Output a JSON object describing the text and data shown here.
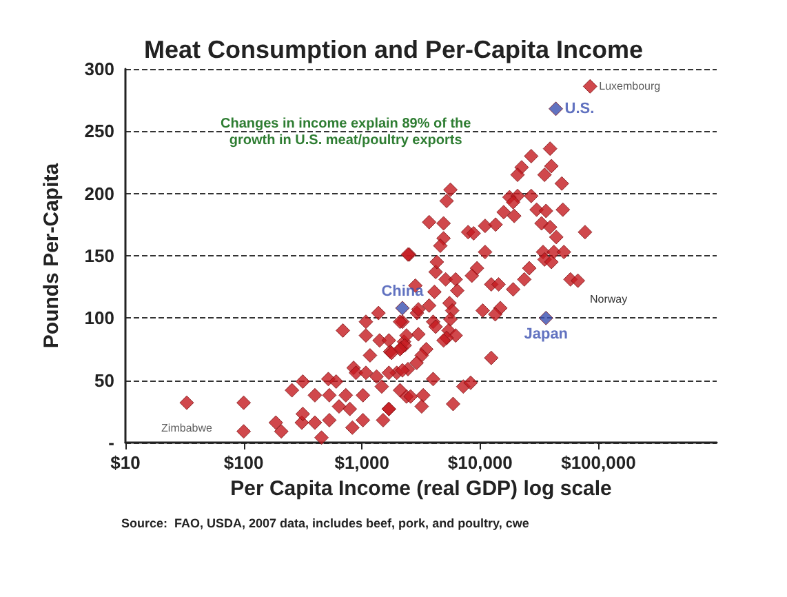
{
  "chart_data": {
    "type": "scatter",
    "title": "Meat Consumption and Per-Capita Income",
    "xlabel": "Per Capita Income (real GDP) log scale",
    "ylabel": "Pounds Per-Capita",
    "log": "x",
    "grid": "y",
    "marker": "diamond",
    "xlim": [
      10,
      1000000
    ],
    "xticks": [
      {
        "value": 10,
        "label": "$10"
      },
      {
        "value": 100,
        "label": "$100"
      },
      {
        "value": 1000,
        "label": "$1,000"
      },
      {
        "value": 10000,
        "label": "$10,000"
      },
      {
        "value": 100000,
        "label": "$100,000"
      }
    ],
    "ylim": [
      0,
      300
    ],
    "yticks": [
      {
        "value": 0,
        "label": "-"
      },
      50,
      100,
      150,
      200,
      250,
      300
    ],
    "series": [
      {
        "color": "#c41a1f",
        "x": [
          33,
          100,
          100,
          187,
          208,
          256,
          316,
          310,
          316,
          400,
          400,
          455,
          520,
          530,
          530,
          605,
          640,
          690,
          730,
          790,
          830,
          850,
          890,
          1020,
          1020,
          1080,
          1170,
          1080,
          1080,
          1380,
          1330,
          1410,
          1470,
          1510,
          1690,
          1730,
          1970,
          2150,
          2200,
          2510,
          2380,
          2270,
          2830,
          2920,
          85000,
          39000,
          27000,
          40000,
          22400,
          20700,
          35000,
          49000,
          5600,
          5200,
          17700,
          20700,
          27000,
          19000,
          15800,
          19400,
          30000,
          36000,
          50000,
          3700,
          4900,
          7900,
          8800,
          11000,
          13500,
          33000,
          39000,
          44000,
          77000,
          4900,
          4600,
          2450,
          11000,
          34000,
          42000,
          51000,
          35000,
          40000,
          4200,
          4300,
          9400,
          8500,
          26000,
          23600,
          58000,
          67000,
          5100,
          6200,
          6400,
          12400,
          14300,
          19000,
          4100,
          3000,
          3700,
          5500,
          5800,
          10500,
          14800,
          13400,
          2100,
          4000,
          5600,
          4200,
          5400,
          3000,
          6200,
          5200,
          4900,
          2380,
          1690,
          2300,
          2100,
          3500,
          1780,
          3200,
          12400,
          2900,
          2450,
          1690,
          2200,
          4000,
          2100,
          2580,
          3300,
          7200,
          8300,
          5900,
          3200,
          1690
        ],
        "values": [
          32,
          32,
          9,
          16,
          9,
          42,
          49,
          16,
          23,
          16,
          38,
          4,
          51,
          38,
          18,
          49,
          29,
          90,
          38,
          27,
          12,
          60,
          56,
          38,
          18,
          56,
          70,
          86,
          97,
          104,
          53,
          82,
          45,
          18,
          27,
          73,
          56,
          76,
          97,
          151,
          37,
          81,
          126,
          104,
          286,
          236,
          230,
          222,
          221,
          215,
          215,
          208,
          203,
          194,
          197,
          198,
          198,
          193,
          185,
          182,
          187,
          186,
          187,
          177,
          176,
          169,
          168,
          174,
          175,
          176,
          173,
          165,
          169,
          164,
          158,
          151,
          153,
          153,
          153,
          153,
          147,
          145,
          137,
          145,
          140,
          134,
          140,
          131,
          131,
          130,
          131,
          131,
          122,
          127,
          127,
          123,
          121,
          107,
          110,
          112,
          106,
          106,
          108,
          103,
          97,
          97,
          99,
          93,
          90,
          87,
          86,
          84,
          82,
          86,
          82,
          78,
          75,
          75,
          72,
          70,
          68,
          64,
          59,
          56,
          58,
          51,
          42,
          37,
          38,
          45,
          48,
          31,
          29,
          27
        ]
      },
      {
        "color": "#3a4fb0",
        "x": [
          2200,
          43600,
          36000
        ],
        "values": [
          108,
          268,
          100
        ]
      }
    ],
    "annotations": [
      {
        "text": "Luxembourg",
        "x": 85000,
        "y": 286
      },
      {
        "text": "U.S.",
        "x": 43600,
        "y": 268
      },
      {
        "text": "China",
        "x": 2200,
        "y": 108
      },
      {
        "text": "Japan",
        "x": 36000,
        "y": 100
      },
      {
        "text": "Zimbabwe",
        "x": 33,
        "y": 32
      },
      "Changes in income explain 89% of the\ngrowth in U.S. meat/poultry exports",
      "Source:  FAO, USDA, 2007 data, includes beef, pork, and poultry, cwe",
      "Norway"
    ]
  }
}
